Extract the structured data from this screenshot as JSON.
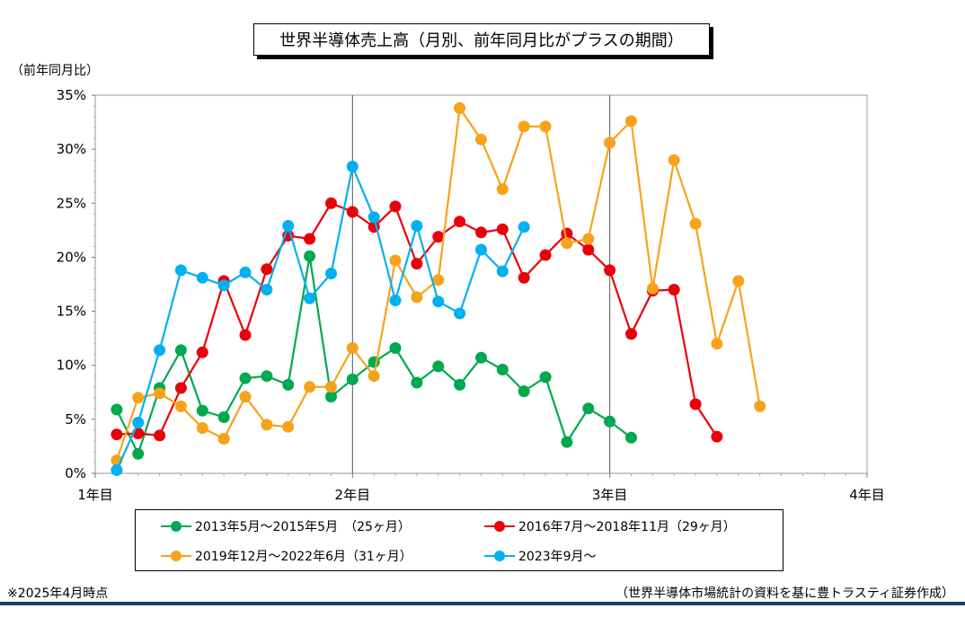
{
  "page": {
    "title": "世界半導体売上高（月別、前年同月比がプラスの期間）",
    "footnote": "※2025年4月時点",
    "source": "（世界半導体市場統計の資料を基に豊トラスティ証券作成）"
  },
  "chart_data": {
    "type": "line",
    "title": "世界半導体売上高（月別、前年同月比がプラスの期間）",
    "ylabel": "（前年同月比）",
    "xlabel": "",
    "xlim": [
      1,
      4
    ],
    "ylim": [
      0,
      35
    ],
    "xticks": [
      1,
      2,
      3,
      4
    ],
    "xtick_labels": [
      "1年目",
      "2年目",
      "3年目",
      "4年目"
    ],
    "yticks": [
      0,
      5,
      10,
      15,
      20,
      25,
      30,
      35
    ],
    "ytick_labels": [
      "0%",
      "5%",
      "10%",
      "15%",
      "20%",
      "25%",
      "30%",
      "35%"
    ],
    "x_gridlines_at": [
      2,
      3
    ],
    "month_step": 0.08333,
    "legend_placement": "bottom",
    "series": [
      {
        "name": "2013年5月～2015年5月　（25ヶ月）",
        "color": "#00a84f",
        "values": [
          5.9,
          1.8,
          7.9,
          11.4,
          5.8,
          5.2,
          8.8,
          9.0,
          8.2,
          20.1,
          7.1,
          8.7,
          10.3,
          11.6,
          8.4,
          9.9,
          8.2,
          10.7,
          9.6,
          7.6,
          8.9,
          2.9,
          6.0,
          4.8,
          3.3
        ]
      },
      {
        "name": "2016年7月～2018年11月（29ヶ月）",
        "color": "#e8000b",
        "values": [
          3.6,
          3.7,
          3.5,
          7.9,
          11.2,
          17.8,
          12.8,
          18.9,
          22.0,
          21.7,
          25.0,
          24.2,
          22.8,
          24.7,
          19.4,
          21.9,
          23.3,
          22.3,
          22.6,
          18.1,
          20.2,
          22.2,
          20.7,
          18.8,
          12.9,
          16.9,
          17.0,
          6.4,
          3.4
        ]
      },
      {
        "name": "2019年12月～2022年6月（31ヶ月）",
        "color": "#f7a21b",
        "values": [
          1.2,
          7.0,
          7.4,
          6.2,
          4.2,
          3.2,
          7.1,
          4.5,
          4.3,
          8.0,
          8.0,
          11.6,
          9.0,
          19.7,
          16.3,
          17.9,
          33.8,
          30.9,
          26.3,
          32.1,
          32.1,
          21.3,
          21.7,
          30.6,
          32.6,
          17.1,
          29.0,
          23.1,
          12.0,
          17.8,
          6.2
        ]
      },
      {
        "name": "2023年9月～",
        "color": "#00b0f0",
        "values": [
          0.3,
          4.7,
          11.4,
          18.8,
          18.1,
          17.4,
          18.6,
          17.0,
          22.9,
          16.2,
          18.5,
          28.4,
          23.7,
          16.0,
          22.9,
          15.9,
          14.8,
          20.7,
          18.7,
          22.8
        ]
      }
    ]
  }
}
